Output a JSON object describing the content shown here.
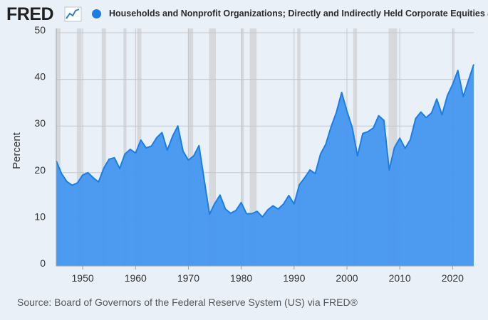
{
  "header": {
    "logo_text": "FRED",
    "logo_icon": "line-chart-icon",
    "series_title": "Households and Nonprofit Organizations; Directly and Indirectly Held Corporate Equities as a Percentage of Financial Assets"
  },
  "footer": {
    "source": "Source: Board of Governors of the Federal Reserve System (US) via FRED®"
  },
  "colors": {
    "series": "#1a7ee6",
    "area_fill": "#4596f0",
    "recession": "#d7d8db",
    "background": "#eaf0f8",
    "grid": "#c3c7cc"
  },
  "chart_data": {
    "type": "area",
    "title": "Households and Nonprofit Organizations; Directly and Indirectly Held Corporate Equities as a Percentage of Financial Assets",
    "xlabel": "",
    "ylabel": "Percent",
    "xlim": [
      1945,
      2024
    ],
    "ylim": [
      0,
      50
    ],
    "grid": true,
    "xticks": [
      1950,
      1960,
      1970,
      1980,
      1990,
      2000,
      2010,
      2020
    ],
    "yticks": [
      0,
      10,
      20,
      30,
      40,
      50
    ],
    "recessions": [
      [
        1945.1,
        1945.8
      ],
      [
        1948.9,
        1949.8
      ],
      [
        1953.6,
        1954.4
      ],
      [
        1957.7,
        1958.3
      ],
      [
        1960.3,
        1961.1
      ],
      [
        1969.9,
        1970.9
      ],
      [
        1973.9,
        1975.2
      ],
      [
        1980.0,
        1980.5
      ],
      [
        1981.6,
        1982.9
      ],
      [
        1990.6,
        1991.2
      ],
      [
        2001.2,
        2001.9
      ],
      [
        2007.9,
        2009.5
      ],
      [
        2020.1,
        2020.3
      ]
    ],
    "series": [
      {
        "name": "Households and Nonprofit Organizations; Directly and Indirectly Held Corporate Equities as a Percentage of Financial Assets",
        "x": [
          1945,
          1946,
          1947,
          1948,
          1949,
          1950,
          1951,
          1952,
          1953,
          1954,
          1955,
          1956,
          1957,
          1958,
          1959,
          1960,
          1961,
          1962,
          1963,
          1964,
          1965,
          1966,
          1967,
          1968,
          1969,
          1970,
          1971,
          1972,
          1973,
          1974,
          1975,
          1976,
          1977,
          1978,
          1979,
          1980,
          1981,
          1982,
          1983,
          1984,
          1985,
          1986,
          1987,
          1988,
          1989,
          1990,
          1991,
          1992,
          1993,
          1994,
          1995,
          1996,
          1997,
          1998,
          1999,
          2000,
          2001,
          2002,
          2003,
          2004,
          2005,
          2006,
          2007,
          2008,
          2009,
          2010,
          2011,
          2012,
          2013,
          2014,
          2015,
          2016,
          2017,
          2018,
          2019,
          2020,
          2021,
          2022,
          2023,
          2024
        ],
        "values": [
          22.5,
          19.8,
          18.1,
          17.3,
          17.8,
          19.5,
          20.0,
          18.9,
          18.0,
          21.0,
          22.9,
          23.2,
          20.9,
          24.0,
          25.0,
          24.2,
          27.0,
          25.3,
          25.7,
          27.5,
          28.6,
          24.8,
          27.8,
          30.0,
          24.6,
          22.7,
          23.6,
          25.8,
          18.4,
          11.1,
          13.4,
          15.2,
          12.2,
          11.3,
          11.9,
          13.6,
          11.2,
          11.2,
          11.7,
          10.5,
          12.0,
          12.9,
          12.2,
          13.3,
          15.1,
          13.3,
          17.4,
          18.9,
          20.6,
          19.8,
          24.0,
          26.1,
          29.8,
          32.9,
          37.2,
          33.2,
          29.7,
          23.6,
          28.4,
          28.8,
          29.6,
          32.2,
          31.2,
          20.6,
          25.4,
          27.4,
          25.2,
          27.1,
          31.6,
          33.0,
          31.8,
          32.8,
          35.8,
          32.4,
          36.5,
          38.9,
          41.9,
          36.3,
          39.8,
          43.2
        ]
      }
    ]
  }
}
